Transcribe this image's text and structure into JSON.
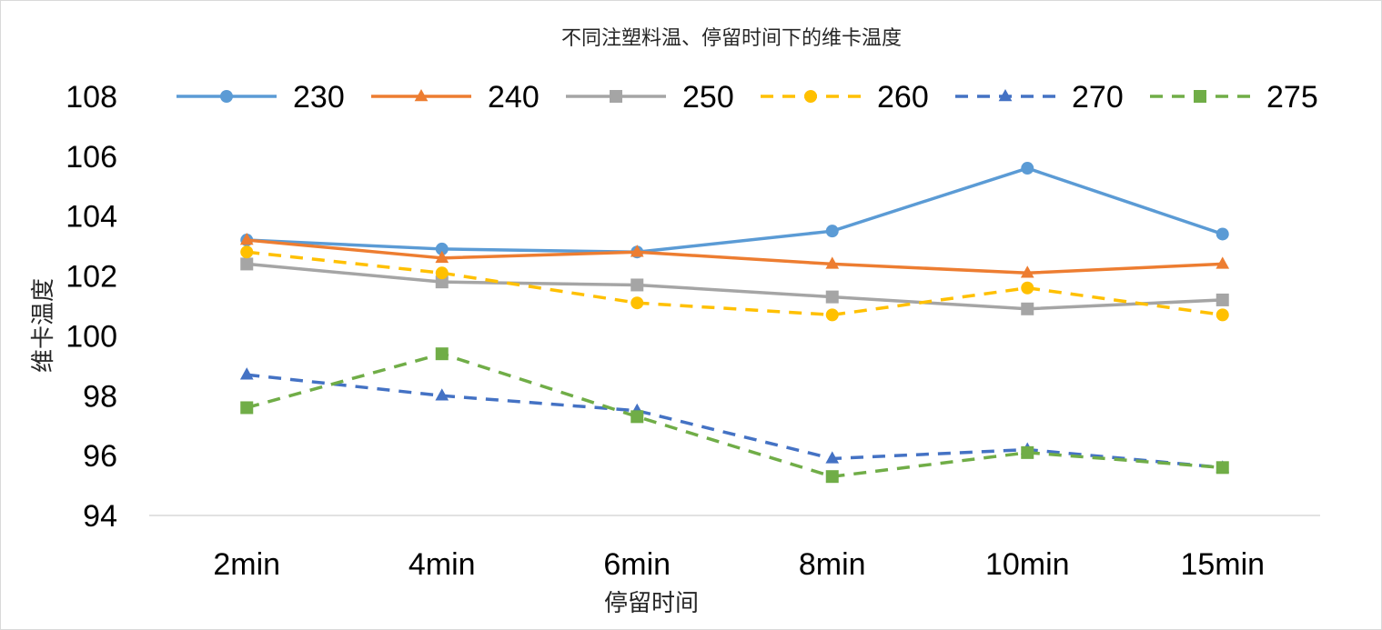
{
  "chart_data": {
    "type": "line",
    "title": "不同注塑料温、停留时间下的维卡温度",
    "xlabel": "停留时间",
    "ylabel": "维卡温度",
    "categories": [
      "2min",
      "4min",
      "6min",
      "8min",
      "10min",
      "15min"
    ],
    "ylim": [
      94,
      108
    ],
    "yticks": [
      94,
      96,
      98,
      100,
      102,
      104,
      106,
      108
    ],
    "grid": false,
    "legend_position": "top",
    "series": [
      {
        "name": "230",
        "values": [
          103.2,
          102.9,
          102.8,
          103.5,
          105.6,
          103.4
        ],
        "color": "#5b9bd5",
        "dash": "solid",
        "marker": "circle"
      },
      {
        "name": "240",
        "values": [
          103.2,
          102.6,
          102.8,
          102.4,
          102.1,
          102.4
        ],
        "color": "#ed7d31",
        "dash": "solid",
        "marker": "triangle"
      },
      {
        "name": "250",
        "values": [
          102.4,
          101.8,
          101.7,
          101.3,
          100.9,
          101.2
        ],
        "color": "#a5a5a5",
        "dash": "solid",
        "marker": "square"
      },
      {
        "name": "260",
        "values": [
          102.8,
          102.1,
          101.1,
          100.7,
          101.6,
          100.7
        ],
        "color": "#ffc000",
        "dash": "dashed",
        "marker": "circle"
      },
      {
        "name": "270",
        "values": [
          98.7,
          98.0,
          97.5,
          95.9,
          96.2,
          95.6
        ],
        "color": "#4472c4",
        "dash": "dashed",
        "marker": "triangle"
      },
      {
        "name": "275",
        "values": [
          97.6,
          99.4,
          97.3,
          95.3,
          96.1,
          95.6
        ],
        "color": "#70ad47",
        "dash": "dashed",
        "marker": "square"
      }
    ]
  }
}
